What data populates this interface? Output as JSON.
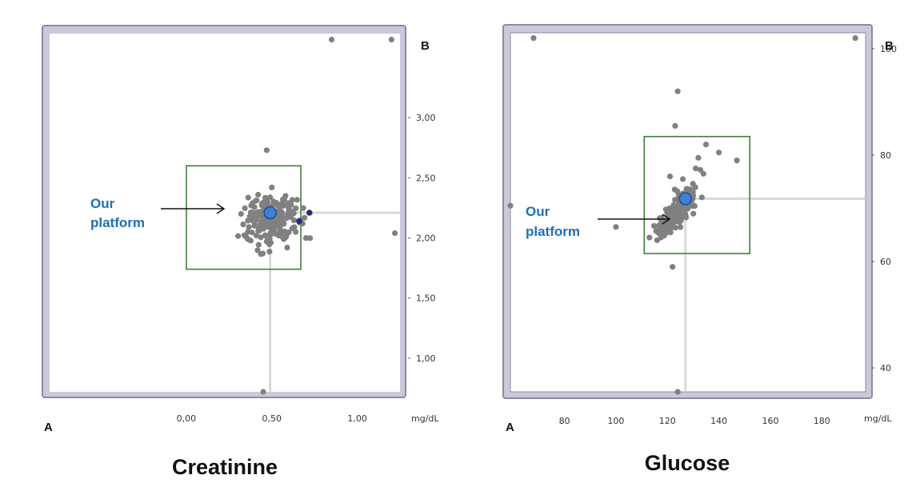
{
  "colors": {
    "frame": "#c9c9d9",
    "frame_stroke": "#8b8ba3",
    "box": "#3f7d3a",
    "crosshair": "#d9d9d9",
    "point": "#808080",
    "our_point_fill": "#3f7fd4",
    "our_point_stroke": "#1e4e8c",
    "highlight": "#232f7a",
    "annotation": "#1f6fb5"
  },
  "chart_data": [
    {
      "type": "scatter",
      "title": "Creatinine",
      "corner_x_label": "A",
      "corner_y_label": "B",
      "x_unit": "mg/dL",
      "xlim": [
        -0.8,
        1.25
      ],
      "ylim": [
        0.72,
        3.7
      ],
      "x_ticks": [
        0.0,
        0.5,
        1.0
      ],
      "x_tick_labels": [
        "0,00",
        "0,50",
        "1,00"
      ],
      "y_ticks": [
        1.0,
        1.5,
        2.0,
        2.5,
        3.0
      ],
      "y_tick_labels": [
        "1,00",
        "1,50",
        "2,00",
        "2,50",
        "3,00"
      ],
      "box": {
        "x": [
          0.0,
          0.67
        ],
        "y": [
          1.74,
          2.6
        ]
      },
      "our_platform": {
        "label_line1": "Our",
        "label_line2": "platform",
        "x": 0.49,
        "y": 2.21
      },
      "points": [
        [
          0.47,
          2.73
        ],
        [
          0.45,
          0.72
        ],
        [
          0.85,
          3.65
        ],
        [
          1.2,
          3.65
        ],
        [
          1.22,
          2.04
        ],
        [
          0.32,
          2.2
        ],
        [
          0.36,
          1.99
        ],
        [
          0.38,
          2.27
        ],
        [
          0.42,
          2.36
        ],
        [
          0.5,
          2.42
        ],
        [
          0.58,
          2.35
        ],
        [
          0.61,
          2.22
        ],
        [
          0.62,
          2.08
        ],
        [
          0.57,
          1.99
        ],
        [
          0.47,
          1.97
        ],
        [
          0.41,
          2.02
        ],
        [
          0.64,
          2.05
        ],
        [
          0.68,
          2.12
        ],
        [
          0.7,
          2.0
        ],
        [
          0.59,
          1.92
        ],
        [
          0.6,
          2.29
        ],
        [
          0.46,
          2.22
        ],
        [
          0.52,
          2.1
        ],
        [
          0.44,
          2.14
        ],
        [
          0.55,
          2.2
        ]
      ],
      "cluster": {
        "cx": 0.49,
        "cy": 2.15,
        "sx": 0.075,
        "sy": 0.1,
        "n": 180,
        "seed": 7
      },
      "highlight_points": [
        [
          0.66,
          2.14
        ],
        [
          0.72,
          2.21
        ]
      ]
    },
    {
      "type": "scatter",
      "title": "Glucose",
      "corner_x_label": "A",
      "corner_y_label": "B",
      "x_unit": "mg/dL",
      "xlim": [
        59,
        197
      ],
      "ylim": [
        35.5,
        103
      ],
      "x_ticks": [
        80,
        100,
        120,
        140,
        160,
        180
      ],
      "x_tick_labels": [
        "80",
        "100",
        "120",
        "140",
        "160",
        "180"
      ],
      "y_ticks": [
        40,
        60,
        80,
        100
      ],
      "y_tick_labels": [
        "40",
        "60",
        "80",
        "100"
      ],
      "box": {
        "x": [
          111,
          152
        ],
        "y": [
          61.5,
          83.5
        ]
      },
      "our_platform": {
        "label_line1": "Our",
        "label_line2": "platform",
        "x": 127,
        "y": 71.8
      },
      "points": [
        [
          124,
          92
        ],
        [
          124,
          35.5
        ],
        [
          68,
          102
        ],
        [
          59,
          70.5
        ],
        [
          193,
          102
        ],
        [
          100,
          66.5
        ],
        [
          122,
          59
        ],
        [
          123,
          85.5
        ],
        [
          135,
          82
        ],
        [
          140,
          80.5
        ],
        [
          147,
          79
        ],
        [
          132,
          79.5
        ],
        [
          113,
          64.5
        ],
        [
          116,
          64
        ],
        [
          121,
          76
        ],
        [
          131,
          77.5
        ],
        [
          126,
          75.5
        ],
        [
          134,
          76.5
        ],
        [
          118,
          67
        ],
        [
          129,
          73
        ]
      ],
      "cluster": {
        "cx": 124,
        "cy": 69.5,
        "sx": 4.0,
        "sy": 2.3,
        "rho": 0.8,
        "n": 170,
        "seed": 13
      },
      "highlight_points": []
    }
  ]
}
